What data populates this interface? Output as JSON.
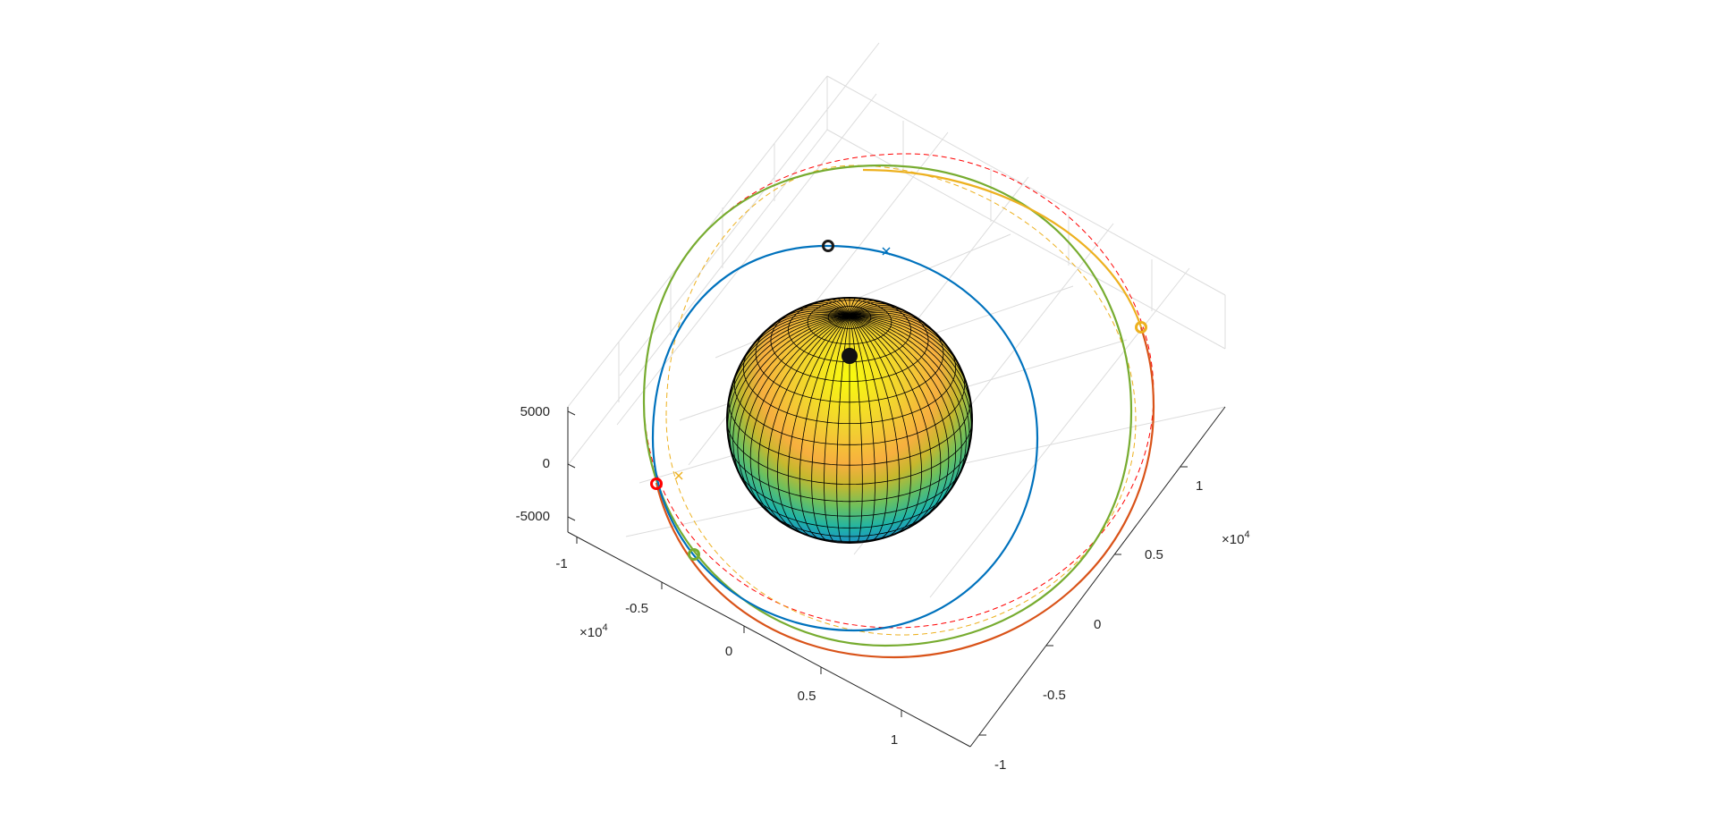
{
  "chart_data": {
    "type": "line3d",
    "title": "",
    "xlabel": "",
    "ylabel": "",
    "zlabel": "",
    "grid": true,
    "box": false,
    "x_multiplier": "×10",
    "x_multiplier_exp": "4",
    "y_multiplier": "×10",
    "y_multiplier_exp": "4",
    "xlim": [
      -10000,
      13000
    ],
    "ylim": [
      -10000,
      13000
    ],
    "zlim": [
      -6000,
      6000
    ],
    "x_ticks": [
      -1,
      -0.5,
      0,
      0.5,
      1
    ],
    "x_tick_labels": [
      "-1",
      "-0.5",
      "0",
      "0.5",
      "1"
    ],
    "y_ticks": [
      -1,
      -0.5,
      0,
      0.5,
      1
    ],
    "y_tick_labels": [
      "-1",
      "-0.5",
      "0",
      "0.5",
      "1"
    ],
    "z_ticks": [
      -5000,
      0,
      5000
    ],
    "z_tick_labels": [
      "-5000",
      "0",
      "5000"
    ],
    "colors": {
      "blue": "#0072BD",
      "orange": "#D95319",
      "yellow": "#EDB120",
      "green": "#77AC30",
      "red": "#FF0000",
      "dark": "#1a1a1a",
      "grid": "#dcdcdc",
      "axis": "#262626"
    },
    "earth": {
      "radius": 6378,
      "colormap": "parula",
      "mesh": "black"
    },
    "series": [
      {
        "key": "inner_orbit",
        "color": "#0072BD",
        "style": "solid",
        "a": 10000,
        "e": 0,
        "width": 2
      },
      {
        "key": "green_orbit",
        "color": "#77AC30",
        "style": "solid",
        "a": 15000,
        "e": 0,
        "width": 2
      },
      {
        "key": "red_dashed_orbit",
        "color": "#FF0000",
        "style": "dashed",
        "a": 17000,
        "e": 0,
        "width": 1
      },
      {
        "key": "yellow_dashed_orbit",
        "color": "#EDB120",
        "style": "dashed",
        "a": 14000,
        "e": 0,
        "width": 1
      },
      {
        "key": "transfer_orbit",
        "color": "#D95319",
        "style": "solid",
        "a": 16000,
        "e": 0.1,
        "width": 2
      },
      {
        "key": "yellow_arc",
        "color": "#EDB120",
        "style": "solid",
        "a": 16500,
        "e": 0.05,
        "width": 2
      }
    ],
    "markers": [
      {
        "key": "start",
        "shape": "o",
        "color": "#1a1a1a",
        "series": "inner_orbit"
      },
      {
        "key": "blue_cross",
        "shape": "x",
        "color": "#0072BD",
        "series": "inner_orbit"
      },
      {
        "key": "red_circle",
        "shape": "o",
        "color": "#FF0000",
        "series": "transfer_orbit"
      },
      {
        "key": "yellow_cross",
        "shape": "x",
        "color": "#EDB120",
        "series": "yellow_dashed_orbit"
      },
      {
        "key": "green_circle",
        "shape": "o",
        "color": "#77AC30",
        "series": "green_orbit"
      },
      {
        "key": "yellow_circle",
        "shape": "o",
        "color": "#EDB120",
        "series": "yellow_arc"
      }
    ]
  }
}
